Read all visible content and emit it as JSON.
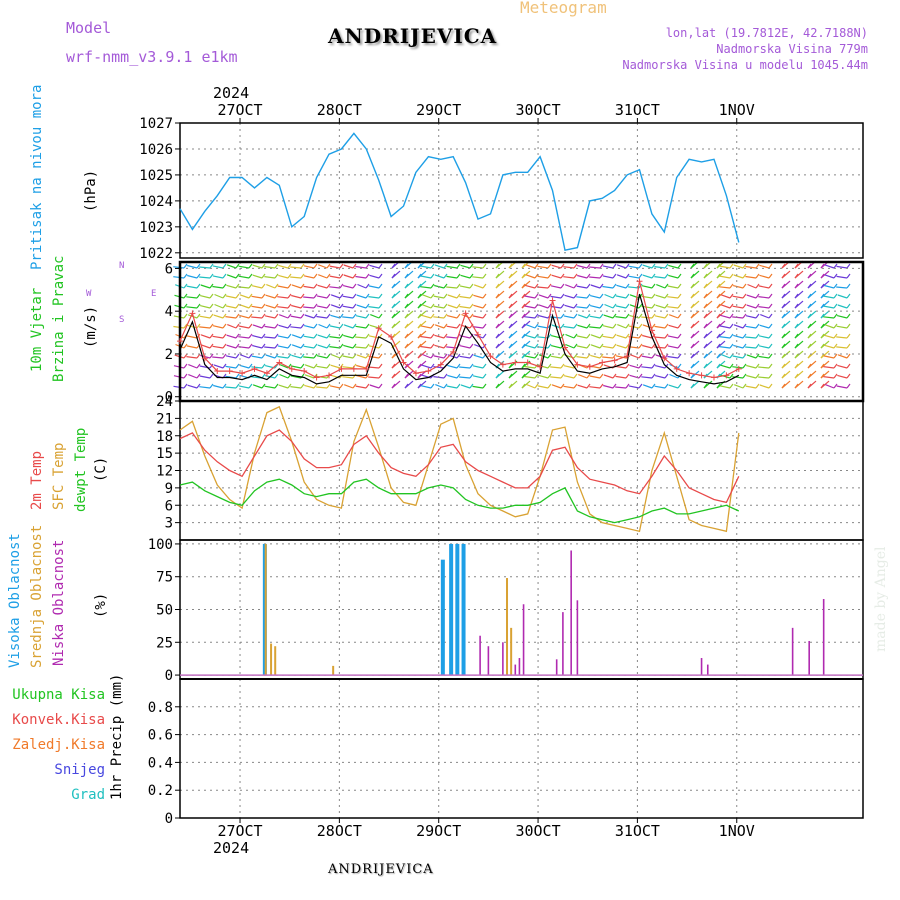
{
  "header": {
    "model_label": "Model",
    "model_name": "wrf-nmm_v3.9.1 e1km",
    "meteogram_label": "Meteogram",
    "station": "ANDRIJEVICA",
    "lonlat": "lon,lat (19.7812E, 42.7188N)",
    "altitude": "Nadmorska Visina 779m",
    "model_altitude": "Nadmorska Visina u modelu 1045.44m",
    "year_top": "2024",
    "year_bottom": "2024",
    "footer_station": "ANDRIJEVICA",
    "watermark": "made by Angel"
  },
  "dates": [
    "27OCT",
    "28OCT",
    "29OCT",
    "30OCT",
    "31OCT",
    "1NOV"
  ],
  "panels": {
    "pressure": {
      "label": "Pritisak na nivou mora",
      "unit": "(hPa)"
    },
    "wind": {
      "label1": "10m Vjetar",
      "label2": "Brzina i Pravac",
      "unit": "(m/s)",
      "compass": {
        "n": "N",
        "w": "W",
        "e": "E",
        "s": "S"
      }
    },
    "temp": {
      "label1": "2m Temp",
      "label2": "SFC Temp",
      "label3": "dewpt Temp",
      "unit": "(C)"
    },
    "cloud": {
      "label1": "Visoka Oblacnost",
      "label2": "Srednja Oblacnost",
      "label3": "Niska Oblacnost",
      "unit": "(%)"
    },
    "precip": {
      "unit": "1hr Precip (mm)",
      "legend": [
        "Ukupna Kisa",
        "Konvek.Kisa",
        "Zaledj.Kisa",
        "Snijeg",
        "Grad"
      ]
    }
  },
  "colors": {
    "pressure": "#1e9fe6",
    "t2m": "#e84a4a",
    "sfc": "#d9a233",
    "dew": "#22c422",
    "high": "#1e9fe6",
    "mid": "#d9a233",
    "low": "#b02ab0",
    "legend": [
      "#22c422",
      "#e84a4a",
      "#f07a2a",
      "#4848e0",
      "#20c0c0"
    ]
  },
  "chart_data": [
    {
      "type": "line",
      "title": "Pritisak na nivou mora",
      "ylabel": "(hPa)",
      "ylim": [
        1021.8,
        1027
      ],
      "x_hours": [
        0,
        3,
        6,
        9,
        12,
        15,
        18,
        21,
        24,
        27,
        30,
        33,
        36,
        39,
        42,
        45,
        48,
        51,
        54,
        57,
        60,
        63,
        66,
        69,
        72,
        75,
        78,
        81,
        84,
        87,
        90,
        93,
        96,
        99,
        102,
        105,
        108,
        111,
        114,
        117,
        120,
        123,
        126,
        129,
        132,
        135,
        138,
        141,
        144,
        147,
        150,
        153,
        156,
        159,
        162,
        165
      ],
      "series": [
        {
          "name": "pressure",
          "values": [
            1023.7,
            1022.9,
            1023.6,
            1024.2,
            1024.9,
            1024.9,
            1024.5,
            1024.9,
            1024.6,
            1023.0,
            1023.4,
            1024.9,
            1025.8,
            1026.0,
            1026.6,
            1026.0,
            1024.8,
            1023.4,
            1023.8,
            1025.1,
            1025.7,
            1025.6,
            1025.7,
            1024.7,
            1023.3,
            1023.5,
            1025.0,
            1025.1,
            1025.1,
            1025.7,
            1024.4,
            1022.1,
            1022.2,
            1024.0,
            1024.1,
            1024.4,
            1025.0,
            1025.2,
            1023.5,
            1022.8,
            1024.9,
            1025.6,
            1025.5,
            1025.6,
            1024.2,
            1022.4
          ]
        }
      ],
      "yticks": [
        1022,
        1023,
        1024,
        1025,
        1026,
        1027
      ]
    },
    {
      "type": "line",
      "title": "10m Vjetar Brzina i Pravac",
      "ylabel": "(m/s)",
      "ylim": [
        -0.2,
        6.3
      ],
      "series": [
        {
          "name": "speed",
          "values": [
            2.2,
            3.5,
            1.5,
            0.9,
            0.9,
            0.8,
            1.0,
            0.8,
            1.3,
            1.0,
            0.9,
            0.6,
            0.7,
            1.0,
            1.0,
            1.0,
            2.8,
            2.5,
            1.3,
            0.8,
            0.9,
            1.2,
            1.8,
            3.3,
            2.5,
            1.6,
            1.2,
            1.3,
            1.3,
            1.1,
            3.8,
            2.0,
            1.2,
            1.1,
            1.3,
            1.4,
            1.6,
            4.8,
            2.8,
            1.5,
            1.0,
            0.8,
            0.7,
            0.6,
            0.7,
            1.0
          ]
        },
        {
          "name": "gust",
          "values": [
            2.6,
            3.9,
            1.8,
            1.2,
            1.2,
            1.1,
            1.3,
            1.1,
            1.6,
            1.3,
            1.2,
            0.9,
            1.0,
            1.3,
            1.3,
            1.3,
            3.2,
            2.8,
            1.6,
            1.1,
            1.2,
            1.5,
            2.1,
            3.9,
            2.9,
            1.9,
            1.5,
            1.6,
            1.6,
            1.4,
            4.5,
            2.3,
            1.5,
            1.4,
            1.6,
            1.7,
            1.9,
            5.4,
            3.1,
            1.8,
            1.3,
            1.1,
            1.0,
            0.9,
            1.0,
            1.3
          ]
        }
      ],
      "yticks": [
        0,
        2,
        4,
        6
      ]
    },
    {
      "type": "line",
      "title": "2m Temp / SFC Temp / dewpt Temp",
      "ylabel": "(C)",
      "ylim": [
        0,
        24
      ],
      "series": [
        {
          "name": "2m Temp",
          "values": [
            17.5,
            18.5,
            15.5,
            13.5,
            12.0,
            11.0,
            14.5,
            18.0,
            19.0,
            17.0,
            14.0,
            12.5,
            12.5,
            13.0,
            16.5,
            18.0,
            15.0,
            12.5,
            11.5,
            11.0,
            13.0,
            16.0,
            16.5,
            13.5,
            12.0,
            11.0,
            10.0,
            9.0,
            9.0,
            11.0,
            15.5,
            16.0,
            12.5,
            10.5,
            10.0,
            9.5,
            8.5,
            8.0,
            11.0,
            14.5,
            12.0,
            9.0,
            8.0,
            7.0,
            6.5,
            11.0
          ]
        },
        {
          "name": "SFC Temp",
          "values": [
            19.0,
            20.5,
            14.5,
            9.5,
            7.0,
            5.5,
            15.0,
            22.0,
            23.0,
            17.0,
            10.0,
            7.0,
            6.0,
            5.5,
            17.0,
            22.5,
            16.0,
            9.0,
            6.5,
            6.0,
            13.0,
            20.0,
            21.0,
            13.0,
            8.0,
            6.0,
            5.0,
            4.0,
            4.5,
            11.0,
            19.0,
            19.5,
            10.0,
            4.5,
            3.0,
            2.5,
            2.0,
            1.5,
            12.0,
            18.5,
            11.0,
            3.5,
            2.5,
            2.0,
            1.5,
            18.5
          ]
        },
        {
          "name": "dewpt Temp",
          "values": [
            9.5,
            10.0,
            8.5,
            7.5,
            6.5,
            6.0,
            8.5,
            10.0,
            10.5,
            9.5,
            8.0,
            7.5,
            8.0,
            8.0,
            10.0,
            10.5,
            9.0,
            8.0,
            8.0,
            8.0,
            9.0,
            9.5,
            9.0,
            7.0,
            6.0,
            5.5,
            5.5,
            6.0,
            6.0,
            6.5,
            8.0,
            9.0,
            5.0,
            4.0,
            3.5,
            3.0,
            3.5,
            4.0,
            5.0,
            5.5,
            4.5,
            4.5,
            5.0,
            5.5,
            6.0,
            5.0
          ]
        }
      ],
      "yticks": [
        3,
        6,
        9,
        12,
        15,
        18,
        21,
        24
      ]
    },
    {
      "type": "bar",
      "title": "Visoka / Srednja / Niska Oblacnost",
      "ylabel": "(%)",
      "ylim": [
        -3,
        103
      ],
      "series": [
        {
          "name": "Visoka Oblacnost",
          "hours": [
            20.5,
            63.5,
            65.5,
            67,
            68.5
          ],
          "values": [
            100,
            88,
            100,
            100,
            100
          ]
        },
        {
          "name": "Srednja Oblacnost",
          "hours": [
            20.7,
            22,
            23,
            37,
            79,
            80
          ],
          "values": [
            100,
            24,
            22,
            7,
            74,
            36
          ]
        },
        {
          "name": "Niska Oblacnost",
          "hours": [
            72.5,
            74.5,
            78,
            81,
            82,
            83,
            91,
            92.5,
            94.5,
            96,
            126,
            127.5,
            148,
            152,
            155.5
          ],
          "values": [
            30,
            22,
            25,
            8,
            13,
            54,
            12,
            48,
            95,
            57,
            13,
            8,
            36,
            26,
            58
          ]
        }
      ],
      "yticks": [
        0,
        25,
        50,
        75,
        100
      ]
    },
    {
      "type": "bar",
      "title": "1hr Precip",
      "ylabel": "1hr Precip (mm)",
      "ylim": [
        0,
        1.0
      ],
      "series": [],
      "yticks": [
        0,
        0.2,
        0.4,
        0.6,
        0.8
      ]
    }
  ]
}
